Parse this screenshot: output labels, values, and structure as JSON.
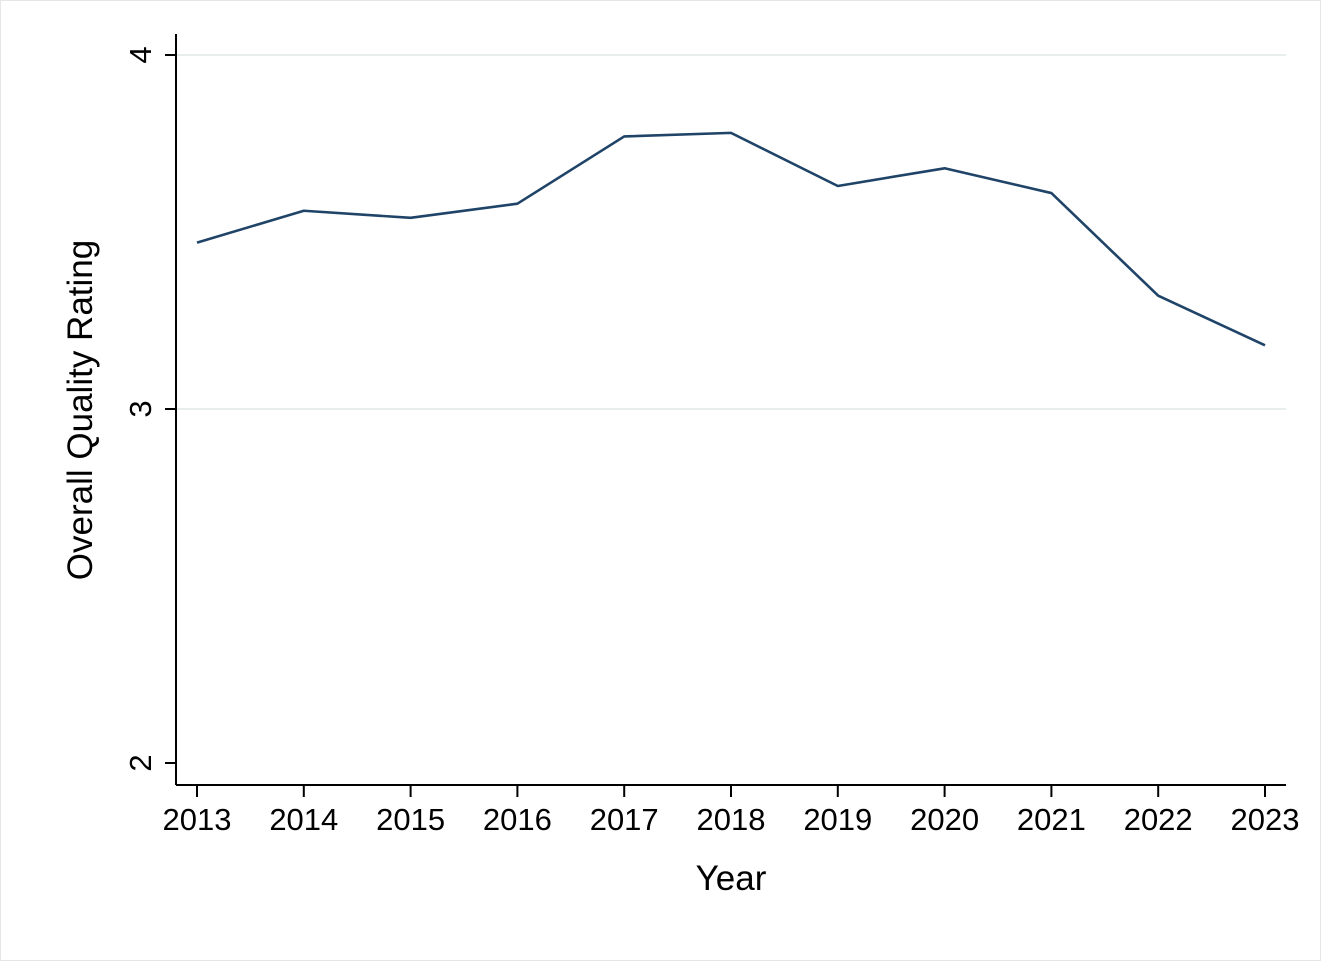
{
  "chart_data": {
    "type": "line",
    "title": "",
    "xlabel": "Year",
    "ylabel": "Overall Quality Rating",
    "x": [
      2013,
      2014,
      2015,
      2016,
      2017,
      2018,
      2019,
      2020,
      2021,
      2022,
      2023
    ],
    "series": [
      {
        "values": [
          3.47,
          3.56,
          3.54,
          3.58,
          3.77,
          3.78,
          3.63,
          3.68,
          3.61,
          3.32,
          3.18
        ]
      }
    ],
    "xticks": [
      "2013",
      "2014",
      "2015",
      "2016",
      "2017",
      "2018",
      "2019",
      "2020",
      "2021",
      "2022",
      "2023"
    ],
    "yticks": [
      "2",
      "3",
      "4"
    ],
    "xlim": [
      2013,
      2023
    ],
    "ylim": [
      2,
      4
    ],
    "grid": "horizontal",
    "legend": "none",
    "colors": {
      "line": "#1f4468",
      "grid": "#e6eeee",
      "axis": "#000000"
    }
  }
}
